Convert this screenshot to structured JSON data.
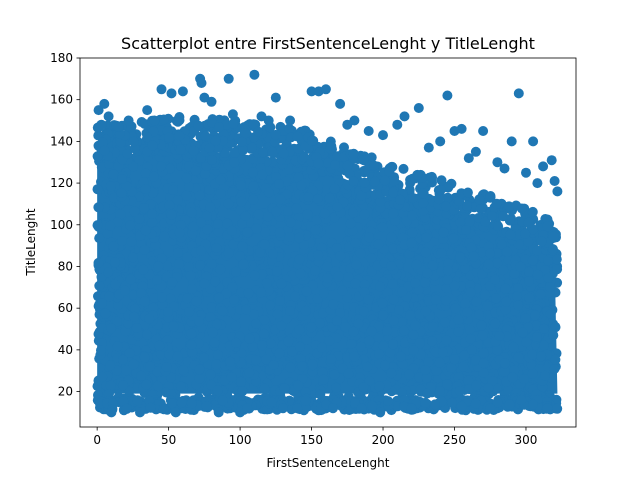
{
  "chart_data": {
    "type": "scatter",
    "title": "Scatterplot entre FirstSentenceLenght y TitleLenght",
    "xlabel": "FirstSentenceLenght",
    "ylabel": "TitleLenght",
    "xlim": [
      -12,
      335
    ],
    "ylim": [
      3,
      180
    ],
    "xticks": [
      0,
      50,
      100,
      150,
      200,
      250,
      300
    ],
    "yticks": [
      20,
      40,
      60,
      80,
      100,
      120,
      140,
      160,
      180
    ],
    "grid": false,
    "legend": "none",
    "color": "#1f77b4",
    "series": [
      {
        "dense_region": {
          "x_range": [
            0,
            322
          ],
          "y_min": 15,
          "y_max_profile": [
            [
              0,
              135
            ],
            [
              25,
              138
            ],
            [
              50,
              140
            ],
            [
              100,
              138
            ],
            [
              150,
              133
            ],
            [
              200,
              118
            ],
            [
              250,
              108
            ],
            [
              300,
              96
            ],
            [
              322,
              88
            ]
          ]
        },
        "outliers": [
          {
            "x": 1,
            "y": 155
          },
          {
            "x": 3,
            "y": 148
          },
          {
            "x": 5,
            "y": 158
          },
          {
            "x": 8,
            "y": 152
          },
          {
            "x": 10,
            "y": 10
          },
          {
            "x": 15,
            "y": 147
          },
          {
            "x": 22,
            "y": 150
          },
          {
            "x": 30,
            "y": 10
          },
          {
            "x": 35,
            "y": 155
          },
          {
            "x": 40,
            "y": 150
          },
          {
            "x": 45,
            "y": 165
          },
          {
            "x": 52,
            "y": 163
          },
          {
            "x": 55,
            "y": 10
          },
          {
            "x": 60,
            "y": 164
          },
          {
            "x": 72,
            "y": 170
          },
          {
            "x": 73,
            "y": 168
          },
          {
            "x": 75,
            "y": 161
          },
          {
            "x": 80,
            "y": 159
          },
          {
            "x": 85,
            "y": 10
          },
          {
            "x": 92,
            "y": 170
          },
          {
            "x": 95,
            "y": 153
          },
          {
            "x": 100,
            "y": 10
          },
          {
            "x": 105,
            "y": 12
          },
          {
            "x": 110,
            "y": 172
          },
          {
            "x": 115,
            "y": 152
          },
          {
            "x": 120,
            "y": 150
          },
          {
            "x": 125,
            "y": 161
          },
          {
            "x": 130,
            "y": 12
          },
          {
            "x": 135,
            "y": 150
          },
          {
            "x": 140,
            "y": 12
          },
          {
            "x": 150,
            "y": 164
          },
          {
            "x": 155,
            "y": 164
          },
          {
            "x": 160,
            "y": 165
          },
          {
            "x": 165,
            "y": 12
          },
          {
            "x": 170,
            "y": 158
          },
          {
            "x": 175,
            "y": 148
          },
          {
            "x": 180,
            "y": 150
          },
          {
            "x": 185,
            "y": 12
          },
          {
            "x": 190,
            "y": 145
          },
          {
            "x": 198,
            "y": 10
          },
          {
            "x": 200,
            "y": 143
          },
          {
            "x": 210,
            "y": 148
          },
          {
            "x": 215,
            "y": 152
          },
          {
            "x": 220,
            "y": 12
          },
          {
            "x": 225,
            "y": 156
          },
          {
            "x": 232,
            "y": 137
          },
          {
            "x": 240,
            "y": 140
          },
          {
            "x": 245,
            "y": 162
          },
          {
            "x": 250,
            "y": 145
          },
          {
            "x": 255,
            "y": 146
          },
          {
            "x": 260,
            "y": 132
          },
          {
            "x": 265,
            "y": 135
          },
          {
            "x": 270,
            "y": 145
          },
          {
            "x": 275,
            "y": 12
          },
          {
            "x": 280,
            "y": 130
          },
          {
            "x": 285,
            "y": 127
          },
          {
            "x": 290,
            "y": 140
          },
          {
            "x": 295,
            "y": 163
          },
          {
            "x": 300,
            "y": 125
          },
          {
            "x": 305,
            "y": 140
          },
          {
            "x": 308,
            "y": 120
          },
          {
            "x": 312,
            "y": 128
          },
          {
            "x": 315,
            "y": 12
          },
          {
            "x": 318,
            "y": 131
          },
          {
            "x": 320,
            "y": 121
          },
          {
            "x": 322,
            "y": 116
          }
        ]
      }
    ]
  }
}
